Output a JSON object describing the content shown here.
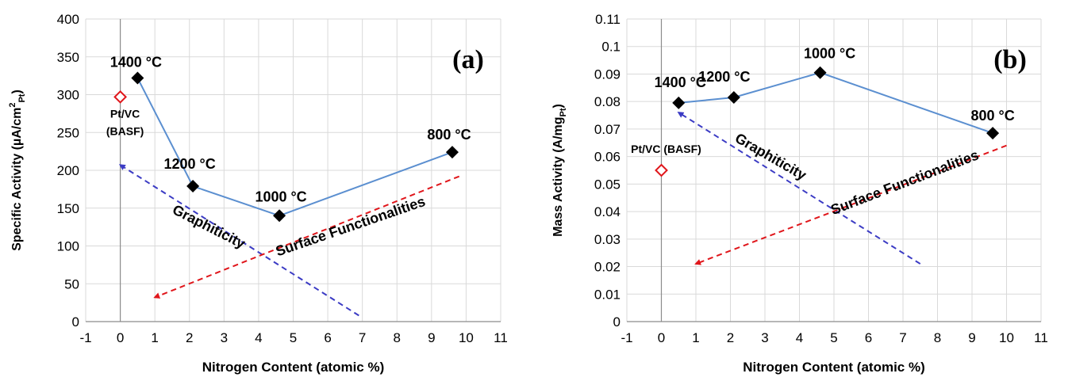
{
  "chart_data": [
    {
      "type": "scatter",
      "panel_label": "(a)",
      "xlabel": "Nitrogen Content (atomic %)",
      "ylabel": {
        "main": "Specific Activity (µA/cm",
        "sup": "2",
        "sub": "Pt",
        "close": ")"
      },
      "xlim": [
        -1,
        11
      ],
      "ylim": [
        0,
        400
      ],
      "x_ticks": [
        "-1",
        "0",
        "1",
        "2",
        "3",
        "4",
        "5",
        "6",
        "7",
        "8",
        "9",
        "10",
        "11"
      ],
      "y_ticks": [
        "0",
        "50",
        "100",
        "150",
        "200",
        "250",
        "300",
        "350",
        "400"
      ],
      "grid": true,
      "series": [
        {
          "marker": "filled-diamond",
          "color": "#000000",
          "line_color": "#5b8fd0",
          "points": [
            {
              "x": 0.5,
              "y": 322,
              "label": "1400 °C"
            },
            {
              "x": 2.1,
              "y": 179,
              "label": "1200 °C"
            },
            {
              "x": 4.6,
              "y": 140,
              "label": "1000 °C"
            },
            {
              "x": 9.6,
              "y": 224,
              "label": "800 °C"
            }
          ]
        }
      ],
      "reference": {
        "x": 0,
        "y": 297,
        "label_line1": "Pt/VC",
        "label_line2": "(BASF)",
        "color": "#e0161b"
      },
      "trends": [
        {
          "label": "Graphiticity",
          "color": "#3b3bc4",
          "from": [
            6.9,
            8
          ],
          "to": [
            0,
            207
          ]
        },
        {
          "label": "Surface Functionalities",
          "color": "#e0161b",
          "from": [
            9.8,
            192
          ],
          "to": [
            1,
            32
          ]
        }
      ]
    },
    {
      "type": "scatter",
      "panel_label": "(b)",
      "xlabel": "Nitrogen Content (atomic %)",
      "ylabel": {
        "main": "Mass Activity (A/mg",
        "sup": "",
        "sub": "Pt",
        "close": ")"
      },
      "xlim": [
        -1,
        11
      ],
      "ylim": [
        0,
        0.11
      ],
      "x_ticks": [
        "-1",
        "0",
        "1",
        "2",
        "3",
        "4",
        "5",
        "6",
        "7",
        "8",
        "9",
        "10",
        "11"
      ],
      "y_ticks": [
        "0",
        "0.01",
        "0.02",
        "0.03",
        "0.04",
        "0.05",
        "0.06",
        "0.07",
        "0.08",
        "0.09",
        "0.1",
        "0.11"
      ],
      "grid": true,
      "series": [
        {
          "marker": "filled-diamond",
          "color": "#000000",
          "line_color": "#5b8fd0",
          "points": [
            {
              "x": 0.5,
              "y": 0.0795,
              "label": "1400 °C"
            },
            {
              "x": 2.1,
              "y": 0.0815,
              "label": "1200 °C"
            },
            {
              "x": 4.6,
              "y": 0.0905,
              "label": "1000 °C"
            },
            {
              "x": 9.6,
              "y": 0.0685,
              "label": "800 °C"
            }
          ]
        }
      ],
      "reference": {
        "x": 0,
        "y": 0.055,
        "label_line1": "Pt/VC (BASF)",
        "label_line2": "",
        "color": "#e0161b"
      },
      "trends": [
        {
          "label": "Graphiticity",
          "color": "#3b3bc4",
          "from": [
            7.5,
            0.021
          ],
          "to": [
            0.5,
            0.076
          ]
        },
        {
          "label": "Surface Functionalities",
          "color": "#e0161b",
          "from": [
            10,
            0.064
          ],
          "to": [
            1,
            0.021
          ]
        }
      ]
    }
  ]
}
